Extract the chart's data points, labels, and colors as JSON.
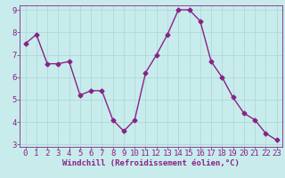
{
  "x": [
    0,
    1,
    2,
    3,
    4,
    5,
    6,
    7,
    8,
    9,
    10,
    11,
    12,
    13,
    14,
    15,
    16,
    17,
    18,
    19,
    20,
    21,
    22,
    23
  ],
  "y": [
    7.5,
    7.9,
    6.6,
    6.6,
    6.7,
    5.2,
    5.4,
    5.4,
    4.1,
    3.6,
    4.1,
    6.2,
    7.0,
    7.9,
    9.0,
    9.0,
    8.5,
    6.7,
    6.0,
    5.1,
    4.4,
    4.1,
    3.5,
    3.2
  ],
  "line_color": "#882288",
  "marker": "D",
  "marker_size": 2.5,
  "xlabel": "Windchill (Refroidissement éolien,°C)",
  "bg_color": "#c8ecec",
  "grid_color": "#aad4d4",
  "ylim": [
    3,
    9
  ],
  "xlim": [
    0,
    23
  ],
  "yticks": [
    3,
    4,
    5,
    6,
    7,
    8,
    9
  ],
  "xticks": [
    0,
    1,
    2,
    3,
    4,
    5,
    6,
    7,
    8,
    9,
    10,
    11,
    12,
    13,
    14,
    15,
    16,
    17,
    18,
    19,
    20,
    21,
    22,
    23
  ],
  "xlabel_color": "#882288",
  "tick_color": "#882288",
  "axis_color": "#882288",
  "xlabel_fontsize": 6.5,
  "tick_fontsize": 6.5,
  "linewidth": 1.0
}
